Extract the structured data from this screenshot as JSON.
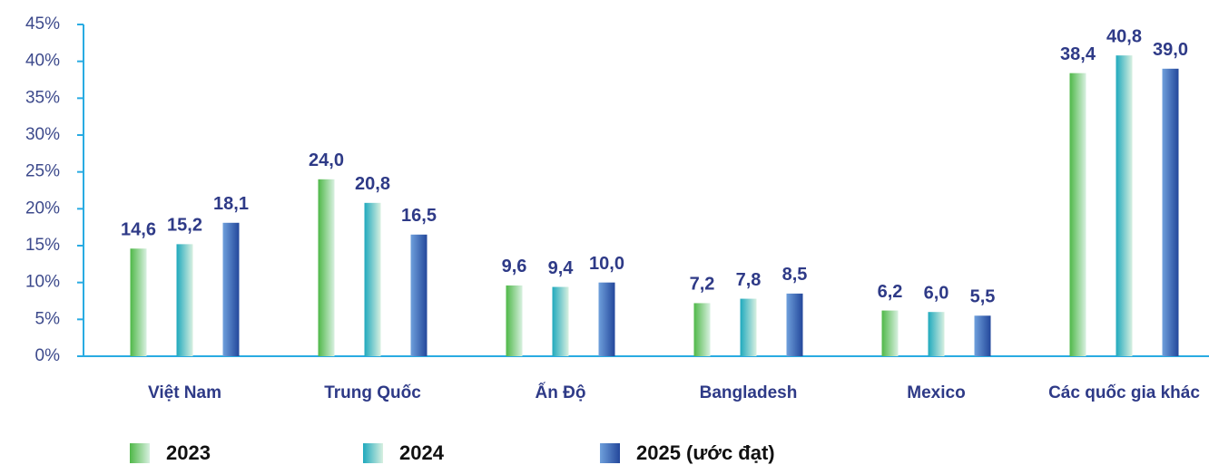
{
  "chart_data": {
    "type": "bar",
    "categories": [
      "Việt Nam",
      "Trung Quốc",
      "Ấn Độ",
      "Bangladesh",
      "Mexico",
      "Các quốc gia khác"
    ],
    "series": [
      {
        "name": "2023",
        "color": "#4fb848",
        "values": [
          14.6,
          24.0,
          9.6,
          7.2,
          6.2,
          38.4
        ],
        "value_labels": [
          "14,6",
          "24,0",
          "9,6",
          "7,2",
          "6,2",
          "38,4"
        ]
      },
      {
        "name": "2024",
        "color": "#1fa9bd",
        "values": [
          15.2,
          20.8,
          9.4,
          7.8,
          6.0,
          40.8
        ],
        "value_labels": [
          "15,2",
          "20,8",
          "9,4",
          "7,8",
          "6,0",
          "40,8"
        ]
      },
      {
        "name": "2025 (ước đạt)",
        "color": "#23479b",
        "values": [
          18.1,
          16.5,
          10.0,
          8.5,
          5.5,
          39.0
        ],
        "value_labels": [
          "18,1",
          "16,5",
          "10,0",
          "8,5",
          "5,5",
          "39,0"
        ]
      }
    ],
    "ylim": [
      0,
      45
    ],
    "yticks": [
      {
        "value": 0,
        "label": "0%"
      },
      {
        "value": 5,
        "label": "5%"
      },
      {
        "value": 10,
        "label": "10%"
      },
      {
        "value": 15,
        "label": "15%"
      },
      {
        "value": 20,
        "label": "20%"
      },
      {
        "value": 25,
        "label": "25%"
      },
      {
        "value": 30,
        "label": "30%"
      },
      {
        "value": 35,
        "label": "35%"
      },
      {
        "value": 40,
        "label": "40%"
      },
      {
        "value": 45,
        "label": "45%"
      }
    ],
    "grid": false
  }
}
